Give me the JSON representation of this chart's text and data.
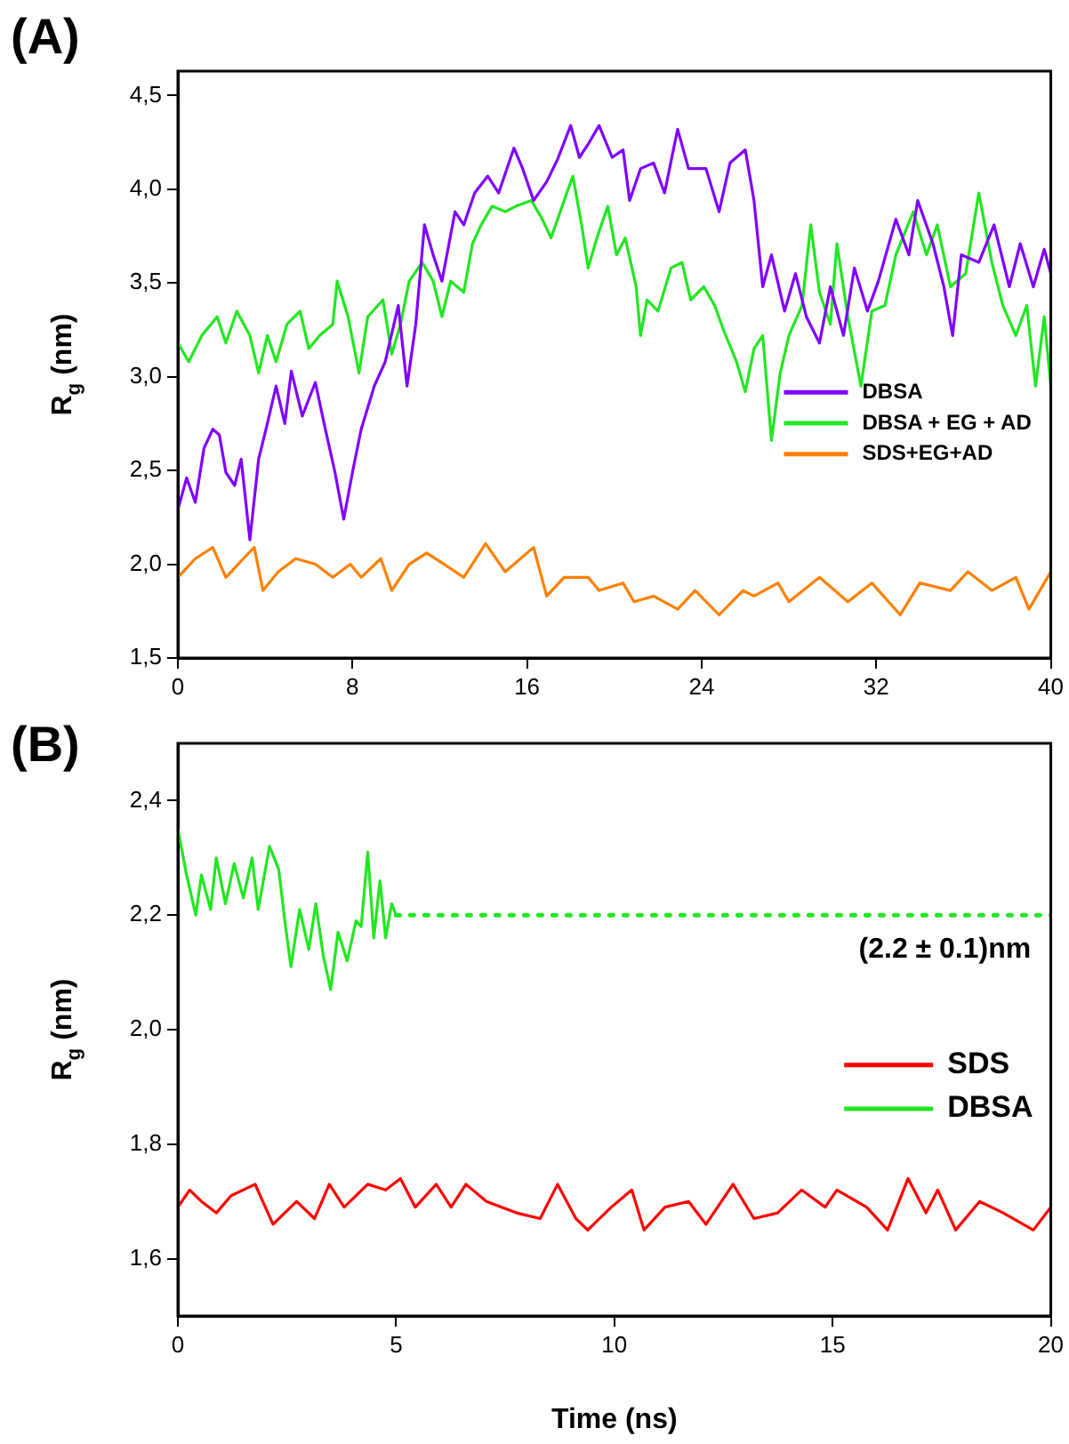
{
  "chart_data": [
    {
      "type": "line",
      "title": "(A)",
      "ylabel": "R$_{g}$ (nm)",
      "xlim": [
        0,
        40
      ],
      "xticks": [
        0,
        8,
        16,
        24,
        32,
        40
      ],
      "ylim": [
        1.5,
        4.63
      ],
      "yticks": [
        {
          "value": 1.5,
          "label": "1,5"
        },
        {
          "value": 2,
          "label": "2,0"
        },
        {
          "value": 2.5,
          "label": "2,5"
        },
        {
          "value": 3,
          "label": "3,0"
        },
        {
          "value": 3.5,
          "label": "3,5"
        },
        {
          "value": 4,
          "label": "4,0"
        },
        {
          "value": 4.5,
          "label": "4,5"
        }
      ],
      "legend": "right",
      "grid": false,
      "marker": "none",
      "series": [
        {
          "name": "DBSA",
          "color": "#8000ff",
          "x": [
            0,
            0.4,
            0.8,
            1.2,
            1.6,
            1.9,
            2.2,
            2.6,
            2.9,
            3.3,
            3.7,
            4.1,
            4.5,
            4.9,
            5.2,
            5.7,
            6.3,
            6.7,
            7.2,
            7.6,
            8.0,
            8.4,
            9.0,
            9.5,
            10.1,
            10.5,
            10.9,
            11.3,
            11.7,
            12.1,
            12.7,
            13.1,
            13.6,
            14.2,
            14.7,
            15.4,
            15.8,
            16.3,
            16.9,
            17.4,
            18.0,
            18.4,
            18.8,
            19.3,
            19.9,
            20.4,
            20.7,
            21.2,
            21.8,
            22.3,
            22.9,
            23.4,
            24.2,
            24.8,
            25.3,
            26.0,
            26.4,
            26.8,
            27.2,
            27.8,
            28.3,
            28.8,
            29.4,
            29.9,
            30.5,
            31.0,
            31.6,
            32.1,
            32.9,
            33.5,
            33.9,
            34.6,
            35.1,
            35.5,
            35.9,
            36.7,
            37.4,
            38.1,
            38.6,
            39.2,
            39.7,
            40
          ],
          "values": [
            2.29,
            2.46,
            2.33,
            2.62,
            2.72,
            2.69,
            2.49,
            2.42,
            2.56,
            2.13,
            2.56,
            2.75,
            2.95,
            2.75,
            3.03,
            2.79,
            2.97,
            2.75,
            2.49,
            2.24,
            2.49,
            2.72,
            2.95,
            3.08,
            3.38,
            2.95,
            3.28,
            3.81,
            3.65,
            3.51,
            3.88,
            3.81,
            3.98,
            4.07,
            3.98,
            4.22,
            4.11,
            3.94,
            4.04,
            4.16,
            4.34,
            4.17,
            4.24,
            4.34,
            4.17,
            4.21,
            3.94,
            4.11,
            4.14,
            3.98,
            4.32,
            4.11,
            4.11,
            3.88,
            4.14,
            4.21,
            3.94,
            3.48,
            3.65,
            3.35,
            3.55,
            3.32,
            3.18,
            3.48,
            3.22,
            3.58,
            3.35,
            3.51,
            3.84,
            3.65,
            3.94,
            3.71,
            3.48,
            3.22,
            3.65,
            3.61,
            3.81,
            3.48,
            3.71,
            3.48,
            3.68,
            3.55
          ]
        },
        {
          "name": "DBSA + EG + AD",
          "color": "#22e622",
          "x": [
            0,
            0.5,
            1.1,
            1.8,
            2.2,
            2.7,
            3.3,
            3.7,
            4.1,
            4.5,
            5.0,
            5.6,
            6.0,
            6.5,
            7.1,
            7.3,
            7.8,
            8.3,
            8.7,
            9.4,
            9.8,
            10.2,
            10.6,
            11.2,
            11.7,
            12.1,
            12.5,
            13.1,
            13.5,
            13.9,
            14.4,
            15.0,
            15.5,
            16.2,
            16.7,
            17.1,
            17.7,
            18.1,
            18.5,
            18.8,
            19.2,
            19.7,
            20.1,
            20.5,
            21.0,
            21.2,
            21.5,
            22.0,
            22.6,
            23.1,
            23.5,
            24.1,
            24.6,
            25.0,
            25.6,
            26.0,
            26.4,
            26.8,
            27.2,
            27.6,
            28.0,
            28.6,
            29.0,
            29.4,
            29.9,
            30.2,
            30.7,
            31.3,
            31.8,
            32.4,
            32.9,
            33.7,
            34.3,
            34.8,
            35.4,
            36.1,
            36.7,
            37.3,
            37.8,
            38.4,
            38.9,
            39.3,
            39.7,
            40
          ],
          "values": [
            3.18,
            3.08,
            3.22,
            3.32,
            3.18,
            3.35,
            3.22,
            3.02,
            3.22,
            3.08,
            3.28,
            3.35,
            3.15,
            3.22,
            3.28,
            3.51,
            3.32,
            3.02,
            3.32,
            3.41,
            3.12,
            3.28,
            3.51,
            3.61,
            3.51,
            3.32,
            3.51,
            3.45,
            3.71,
            3.81,
            3.91,
            3.88,
            3.91,
            3.94,
            3.84,
            3.74,
            3.94,
            4.07,
            3.81,
            3.58,
            3.74,
            3.91,
            3.65,
            3.74,
            3.48,
            3.22,
            3.41,
            3.35,
            3.58,
            3.61,
            3.41,
            3.48,
            3.38,
            3.25,
            3.08,
            2.92,
            3.15,
            3.22,
            2.66,
            3.02,
            3.22,
            3.38,
            3.81,
            3.45,
            3.28,
            3.71,
            3.32,
            2.95,
            3.35,
            3.38,
            3.65,
            3.88,
            3.65,
            3.81,
            3.48,
            3.55,
            3.98,
            3.61,
            3.38,
            3.22,
            3.38,
            2.95,
            3.32,
            2.95
          ]
        },
        {
          "name": "SDS+EG+AD",
          "color": "#ff8000",
          "x": [
            0,
            0.8,
            1.6,
            2.2,
            3.0,
            3.5,
            3.9,
            4.6,
            5.4,
            6.3,
            7.1,
            7.9,
            8.4,
            9.3,
            9.8,
            10.6,
            11.4,
            12.2,
            13.1,
            14.1,
            15.0,
            16.3,
            16.9,
            17.7,
            18.8,
            19.3,
            20.4,
            20.9,
            21.8,
            22.9,
            23.7,
            24.8,
            25.9,
            26.4,
            27.5,
            28.0,
            29.4,
            30.7,
            31.8,
            33.1,
            34.0,
            35.4,
            36.2,
            37.3,
            38.4,
            39.0,
            40
          ],
          "values": [
            1.93,
            2.03,
            2.09,
            1.93,
            2.03,
            2.09,
            1.86,
            1.96,
            2.03,
            2.0,
            1.93,
            2.0,
            1.93,
            2.03,
            1.86,
            2.0,
            2.06,
            2.0,
            1.93,
            2.11,
            1.96,
            2.09,
            1.83,
            1.93,
            1.93,
            1.86,
            1.9,
            1.8,
            1.83,
            1.76,
            1.86,
            1.73,
            1.86,
            1.83,
            1.9,
            1.8,
            1.93,
            1.8,
            1.9,
            1.73,
            1.9,
            1.86,
            1.96,
            1.86,
            1.93,
            1.76,
            1.96
          ]
        }
      ]
    },
    {
      "type": "line",
      "title": "(B)",
      "xlabel": "Time (ns)",
      "ylabel": "R$_{g}$ (nm)",
      "xlim": [
        0,
        20
      ],
      "xticks": [
        0,
        5,
        10,
        15,
        20
      ],
      "ylim": [
        1.5,
        2.5
      ],
      "yticks": [
        {
          "value": 1.6,
          "label": "1,6"
        },
        {
          "value": 1.8,
          "label": "1,8"
        },
        {
          "value": 2,
          "label": "2,0"
        },
        {
          "value": 2.2,
          "label": "2,2"
        },
        {
          "value": 2.4,
          "label": "2,4"
        }
      ],
      "legend": "right",
      "grid": false,
      "marker": "none",
      "annotations": [
        "(2.2 ± 0.1)nm"
      ],
      "series": [
        {
          "name": "SDS",
          "color": "#ff0000",
          "x": [
            0,
            0.27,
            0.54,
            0.88,
            1.22,
            1.77,
            2.18,
            2.72,
            3.13,
            3.47,
            3.81,
            4.35,
            4.76,
            5.1,
            5.44,
            5.92,
            6.26,
            6.6,
            7.07,
            7.76,
            8.3,
            8.7,
            9.12,
            9.39,
            9.93,
            10.4,
            10.68,
            11.16,
            11.7,
            12.1,
            12.72,
            13.2,
            13.74,
            14.29,
            14.83,
            15.1,
            15.78,
            16.26,
            16.73,
            17.14,
            17.41,
            17.82,
            18.37,
            18.91,
            19.6,
            20
          ],
          "values": [
            1.69,
            1.72,
            1.7,
            1.68,
            1.71,
            1.73,
            1.66,
            1.7,
            1.67,
            1.73,
            1.69,
            1.73,
            1.72,
            1.74,
            1.69,
            1.73,
            1.69,
            1.73,
            1.7,
            1.68,
            1.67,
            1.73,
            1.67,
            1.65,
            1.69,
            1.72,
            1.65,
            1.69,
            1.7,
            1.66,
            1.73,
            1.67,
            1.68,
            1.72,
            1.69,
            1.72,
            1.69,
            1.65,
            1.74,
            1.68,
            1.72,
            1.65,
            1.7,
            1.68,
            1.65,
            1.69
          ]
        },
        {
          "name": "DBSA",
          "color": "#22e622",
          "x": [
            0,
            0.2,
            0.41,
            0.54,
            0.75,
            0.88,
            1.09,
            1.29,
            1.5,
            1.7,
            1.84,
            2.1,
            2.31,
            2.45,
            2.59,
            2.79,
            3.0,
            3.16,
            3.33,
            3.5,
            3.67,
            3.88,
            4.08,
            4.2,
            4.35,
            4.49,
            4.63,
            4.76,
            4.9,
            5
          ],
          "values": [
            2.35,
            2.27,
            2.2,
            2.27,
            2.21,
            2.3,
            2.22,
            2.29,
            2.23,
            2.3,
            2.21,
            2.32,
            2.28,
            2.19,
            2.11,
            2.21,
            2.14,
            2.22,
            2.13,
            2.07,
            2.17,
            2.12,
            2.19,
            2.18,
            2.31,
            2.16,
            2.26,
            2.16,
            2.22,
            2.2
          ]
        },
        {
          "type": "line",
          "line_style": "dotted",
          "color": "#22e622",
          "x": [
            5,
            20
          ],
          "values": [
            2.2,
            2.2
          ]
        }
      ]
    }
  ]
}
